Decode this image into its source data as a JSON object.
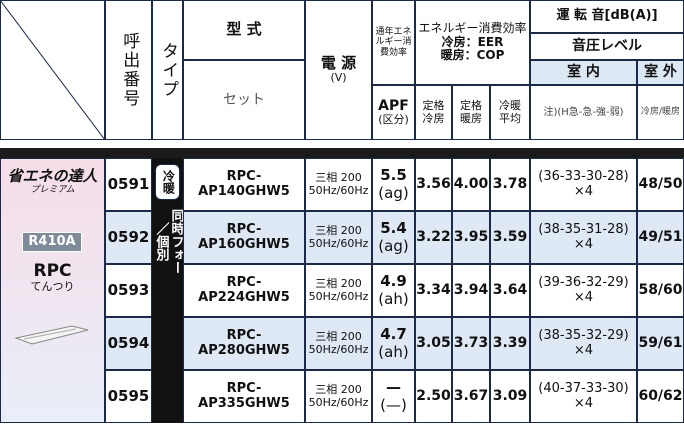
{
  "header": {
    "col_code": "呼出番号",
    "col_type": "タイプ",
    "model": "型 式",
    "set": "セット",
    "power": "電 源",
    "power_unit": "(V)",
    "apf_title": "通年エネルギー消費効率",
    "apf": "APF",
    "apf_sub": "(区分)",
    "eff_title": "エネルギー消費効率",
    "eer": "冷房：EER",
    "cop": "暖房：COP",
    "rated_cool": "定格冷房",
    "rated_heat": "定格暖房",
    "avg": "冷暖平均",
    "noise_title": "運 転 音[dB(A)]",
    "spl": "音圧レベル",
    "indoor": "室 内",
    "outdoor": "室 外",
    "indoor_note": "注)(H急-急-強-弱)",
    "outdoor_note": "冷房/暖房"
  },
  "brand": {
    "logo": "省エネの達人",
    "logo_sub": "プレミアム",
    "refrigerant": "R410A",
    "series": "RPC",
    "series_sub": "てんつり"
  },
  "type": {
    "badge": "冷暖",
    "label": "同時フォー／個別"
  },
  "rows": [
    {
      "code": "0591",
      "model": "RPC-AP140GHW5",
      "power": "三相 200",
      "freq": "50Hz/60Hz",
      "apf": "5.5",
      "apf_class": "(ag)",
      "cool": "3.56",
      "heat": "4.00",
      "avg": "3.78",
      "indoor": "(36-33-30-28)",
      "indoor_mult": "×4",
      "outdoor": "48/50"
    },
    {
      "code": "0592",
      "model": "RPC-AP160GHW5",
      "power": "三相 200",
      "freq": "50Hz/60Hz",
      "apf": "5.4",
      "apf_class": "(ag)",
      "cool": "3.22",
      "heat": "3.95",
      "avg": "3.59",
      "indoor": "(38-35-31-28)",
      "indoor_mult": "×4",
      "outdoor": "49/51"
    },
    {
      "code": "0593",
      "model": "RPC-AP224GHW5",
      "power": "三相 200",
      "freq": "50Hz/60Hz",
      "apf": "4.9",
      "apf_class": "(ah)",
      "cool": "3.34",
      "heat": "3.94",
      "avg": "3.64",
      "indoor": "(39-36-32-29)",
      "indoor_mult": "×4",
      "outdoor": "58/60"
    },
    {
      "code": "0594",
      "model": "RPC-AP280GHW5",
      "power": "三相 200",
      "freq": "50Hz/60Hz",
      "apf": "4.7",
      "apf_class": "(ah)",
      "cool": "3.05",
      "heat": "3.73",
      "avg": "3.39",
      "indoor": "(38-35-32-29)",
      "indoor_mult": "×4",
      "outdoor": "59/61"
    },
    {
      "code": "0595",
      "model": "RPC-AP335GHW5",
      "power": "三相 200",
      "freq": "50Hz/60Hz",
      "apf": "—",
      "apf_class": "(—)",
      "cool": "2.50",
      "heat": "3.67",
      "avg": "3.09",
      "indoor": "(40-37-33-30)",
      "indoor_mult": "×4",
      "outdoor": "60/62"
    }
  ]
}
